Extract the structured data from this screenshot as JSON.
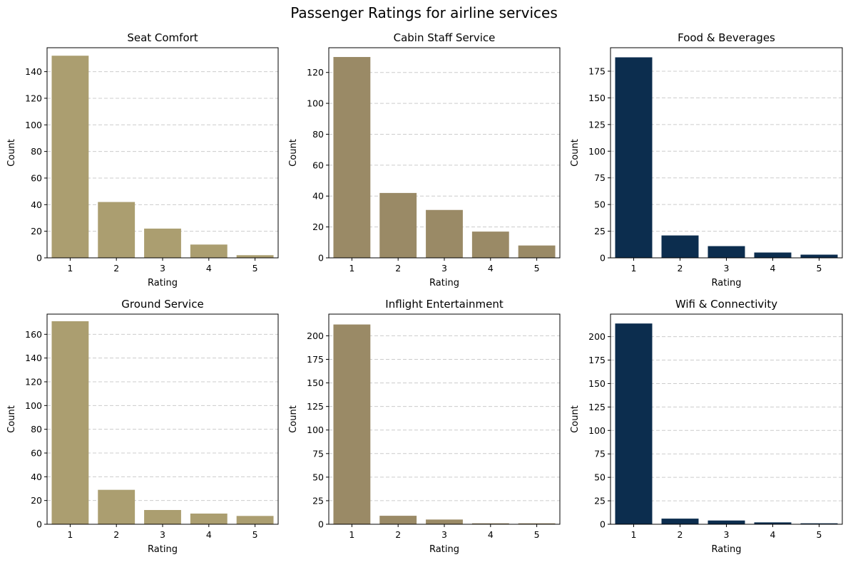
{
  "figure_title": "Passenger Ratings for airline services",
  "chart_data": [
    {
      "type": "bar",
      "title": "Seat Comfort",
      "xlabel": "Rating",
      "ylabel": "Count",
      "categories": [
        "1",
        "2",
        "3",
        "4",
        "5"
      ],
      "values": [
        152,
        42,
        22,
        10,
        2
      ],
      "ylim": [
        0,
        158
      ],
      "yticks": [
        0,
        20,
        40,
        60,
        80,
        100,
        120,
        140
      ],
      "color": "#AB9E70",
      "grid": "y-dashed"
    },
    {
      "type": "bar",
      "title": "Cabin Staff Service",
      "xlabel": "Rating",
      "ylabel": "Count",
      "categories": [
        "1",
        "2",
        "3",
        "4",
        "5"
      ],
      "values": [
        130,
        42,
        31,
        17,
        8
      ],
      "ylim": [
        0,
        136
      ],
      "yticks": [
        0,
        20,
        40,
        60,
        80,
        100,
        120
      ],
      "color": "#9A8A66",
      "grid": "y-dashed"
    },
    {
      "type": "bar",
      "title": "Food & Beverages",
      "xlabel": "Rating",
      "ylabel": "Count",
      "categories": [
        "1",
        "2",
        "3",
        "4",
        "5"
      ],
      "values": [
        188,
        21,
        11,
        5,
        3
      ],
      "ylim": [
        0,
        197
      ],
      "yticks": [
        0,
        25,
        50,
        75,
        100,
        125,
        150,
        175
      ],
      "color": "#0C2D4E",
      "grid": "y-dashed"
    },
    {
      "type": "bar",
      "title": "Ground Service",
      "xlabel": "Rating",
      "ylabel": "Count",
      "categories": [
        "1",
        "2",
        "3",
        "4",
        "5"
      ],
      "values": [
        171,
        29,
        12,
        9,
        7
      ],
      "ylim": [
        0,
        177
      ],
      "yticks": [
        0,
        20,
        40,
        60,
        80,
        100,
        120,
        140,
        160
      ],
      "color": "#AB9E70",
      "grid": "y-dashed"
    },
    {
      "type": "bar",
      "title": "Inflight Entertainment",
      "xlabel": "Rating",
      "ylabel": "Count",
      "categories": [
        "1",
        "2",
        "3",
        "4",
        "5"
      ],
      "values": [
        212,
        9,
        5,
        1,
        1
      ],
      "ylim": [
        0,
        223
      ],
      "yticks": [
        0,
        25,
        50,
        75,
        100,
        125,
        150,
        175,
        200
      ],
      "color": "#9A8A66",
      "grid": "y-dashed"
    },
    {
      "type": "bar",
      "title": "Wifi & Connectivity",
      "xlabel": "Rating",
      "ylabel": "Count",
      "categories": [
        "1",
        "2",
        "3",
        "4",
        "5"
      ],
      "values": [
        214,
        6,
        4,
        2,
        1
      ],
      "ylim": [
        0,
        224
      ],
      "yticks": [
        0,
        25,
        50,
        75,
        100,
        125,
        150,
        175,
        200
      ],
      "color": "#0C2D4E",
      "grid": "y-dashed"
    }
  ]
}
